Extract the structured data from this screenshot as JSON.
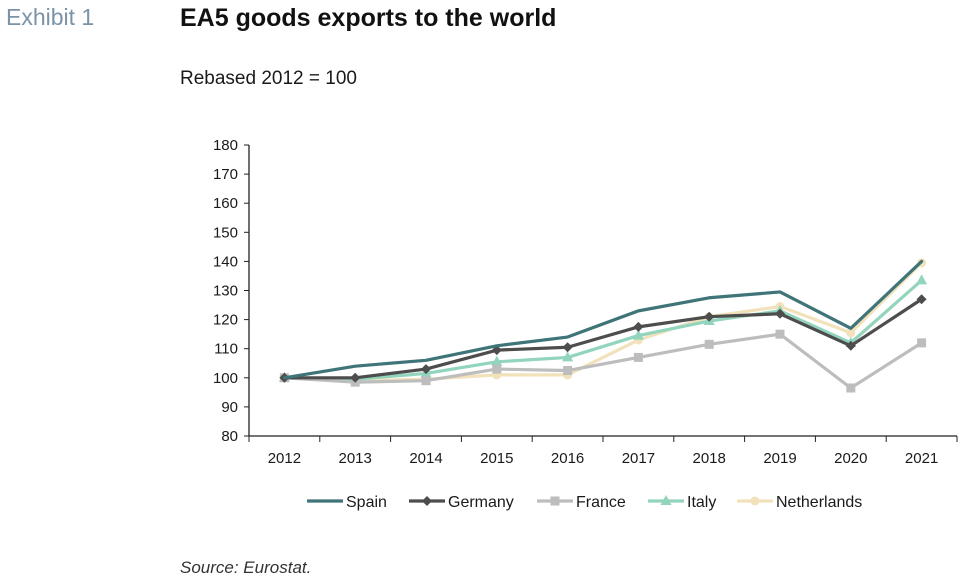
{
  "header": {
    "exhibit_label": "Exhibit 1",
    "title": "EA5 goods exports to the world",
    "subtitle": "Rebased 2012 = 100"
  },
  "footer": {
    "source": "Source: Eurostat."
  },
  "chart_data": {
    "type": "line",
    "categories": [
      "2012",
      "2013",
      "2014",
      "2015",
      "2016",
      "2017",
      "2018",
      "2019",
      "2020",
      "2021"
    ],
    "ylim": [
      80,
      180
    ],
    "yticks": [
      80,
      90,
      100,
      110,
      120,
      130,
      140,
      150,
      160,
      170,
      180
    ],
    "grid": false,
    "legend_position": "bottom",
    "series": [
      {
        "name": "Spain",
        "color": "#3f7478",
        "marker": "none",
        "values": [
          100,
          104,
          106,
          111,
          114,
          123,
          127.5,
          129.5,
          117,
          140
        ]
      },
      {
        "name": "Germany",
        "color": "#4d4d4d",
        "marker": "diamond",
        "values": [
          100,
          100,
          103,
          109.5,
          110.5,
          117.5,
          121,
          122,
          111,
          127
        ]
      },
      {
        "name": "France",
        "color": "#bdbdbd",
        "marker": "square",
        "values": [
          100,
          98.5,
          99,
          103,
          102.5,
          107,
          111.5,
          115,
          96.5,
          112
        ]
      },
      {
        "name": "Italy",
        "color": "#92d4bc",
        "marker": "triangle",
        "values": [
          100,
          99.5,
          101.5,
          105.5,
          107,
          114.5,
          119.5,
          123,
          112,
          133.5
        ]
      },
      {
        "name": "Netherlands",
        "color": "#f2e2bb",
        "marker": "circle",
        "values": [
          100,
          99,
          99.5,
          101,
          101,
          113,
          121,
          124.5,
          115.5,
          139.5
        ]
      }
    ]
  }
}
